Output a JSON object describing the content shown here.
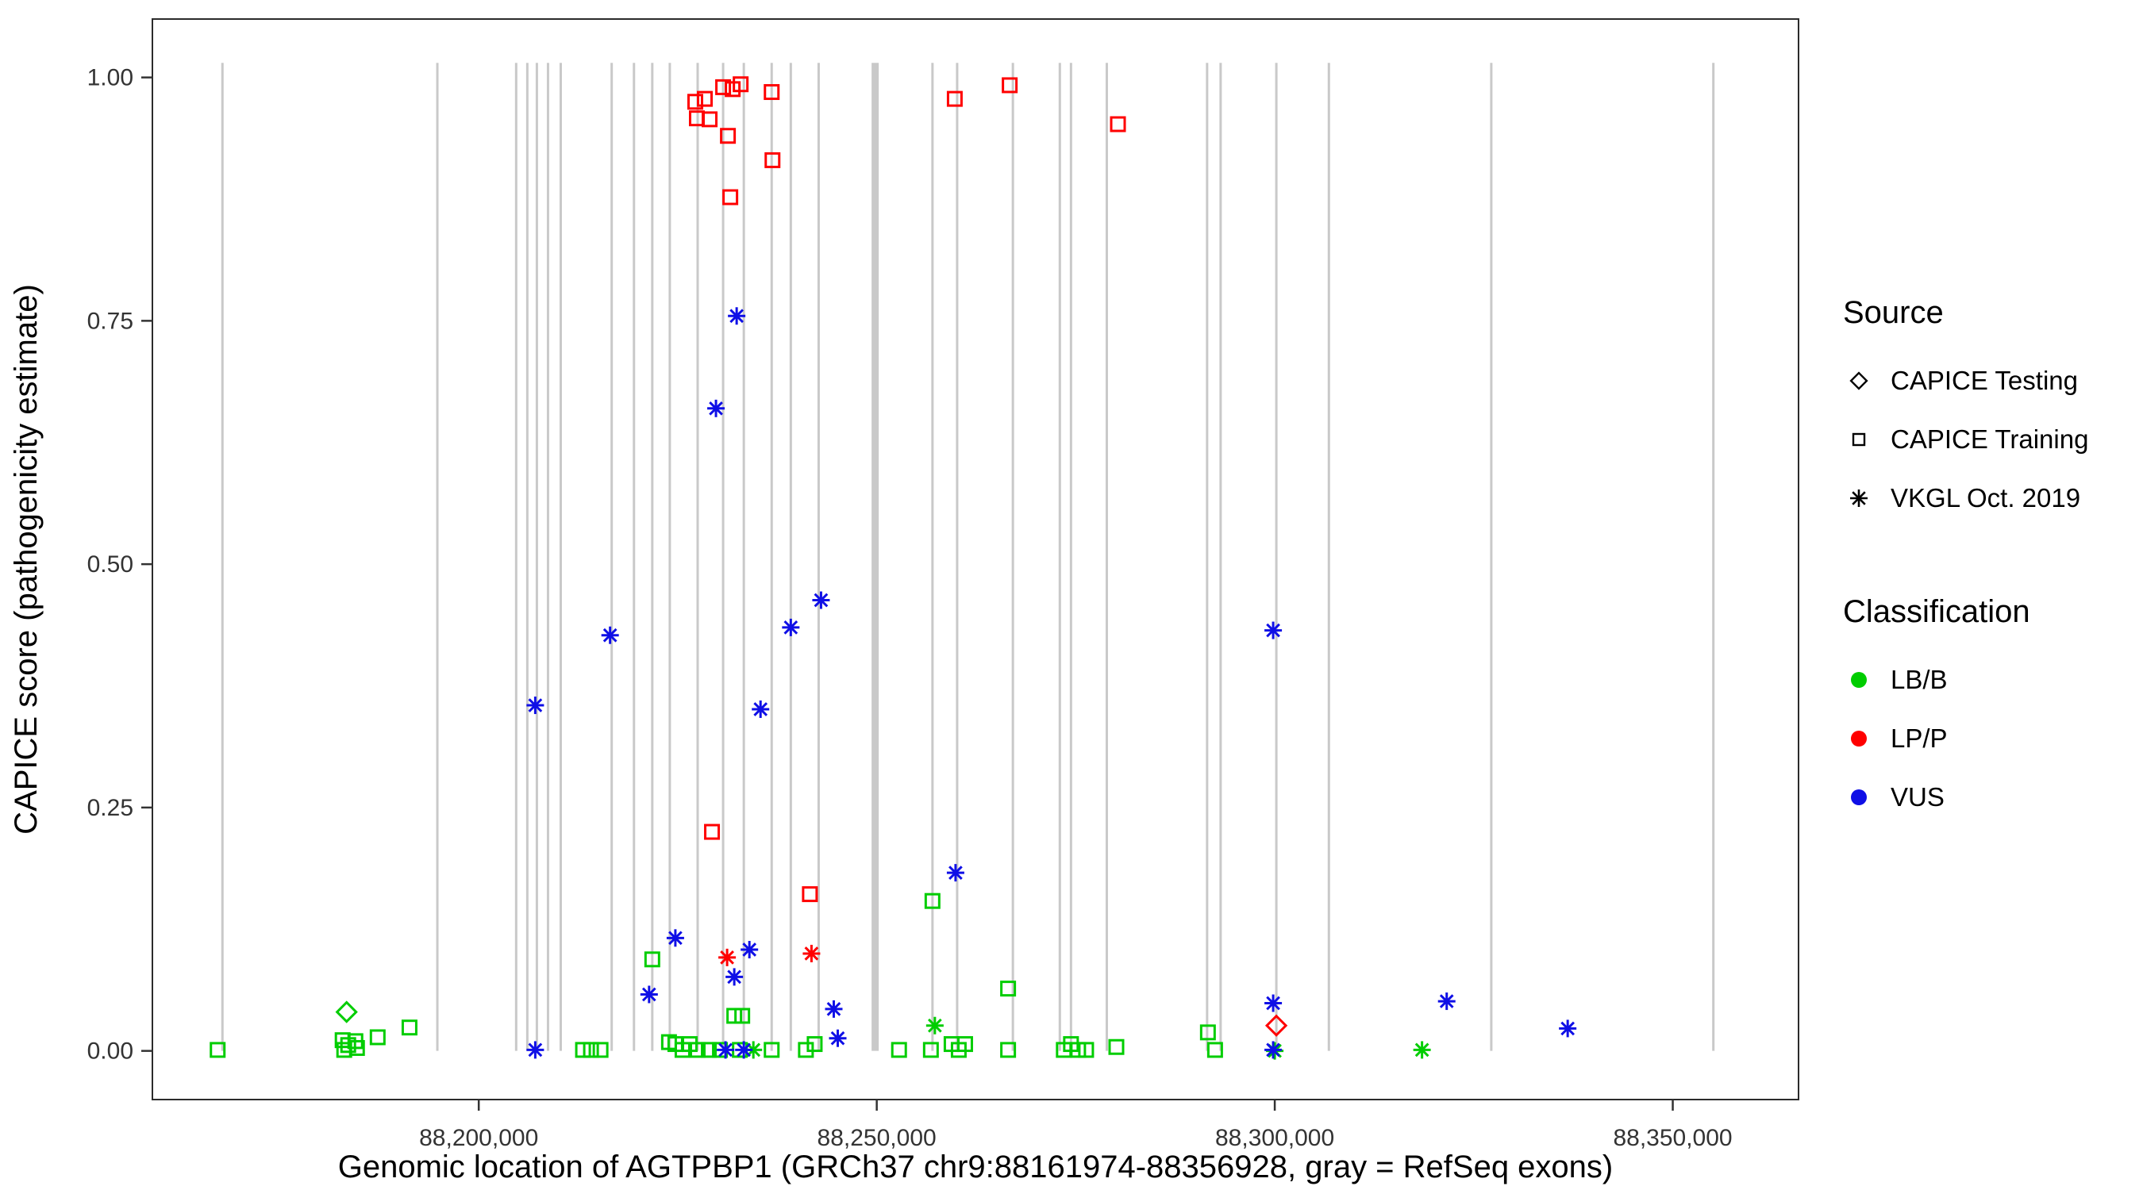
{
  "legend": {
    "source": {
      "title": "Source",
      "items": [
        {
          "label": "CAPICE Testing",
          "marker": "diamond"
        },
        {
          "label": "CAPICE Training",
          "marker": "square"
        },
        {
          "label": "VKGL Oct. 2019",
          "marker": "asterisk"
        }
      ]
    },
    "classification": {
      "title": "Classification",
      "items": [
        {
          "label": "LB/B",
          "color": "#00CD00"
        },
        {
          "label": "LP/P",
          "color": "#FF0000"
        },
        {
          "label": "VUS",
          "color": "#0F0FE6"
        }
      ]
    }
  },
  "chart_data": {
    "type": "scatter",
    "title": "",
    "xlabel": "Genomic location of AGTPBP1 (GRCh37 chr9:88161974-88356928, gray = RefSeq exons)",
    "ylabel": "CAPICE score (pathogenicity estimate)",
    "xlim": [
      88159000,
      88365800
    ],
    "ylim": [
      -0.05,
      1.06
    ],
    "grid": false,
    "legend_position": "right",
    "x_ticks": [
      {
        "value": 88200000,
        "label": "88,200,000"
      },
      {
        "value": 88250000,
        "label": "88,250,000"
      },
      {
        "value": 88300000,
        "label": "88,300,000"
      },
      {
        "value": 88350000,
        "label": "88,350,000"
      }
    ],
    "y_ticks": [
      {
        "value": 0.0,
        "label": "0.00"
      },
      {
        "value": 0.25,
        "label": "0.25"
      },
      {
        "value": 0.5,
        "label": "0.50"
      },
      {
        "value": 0.75,
        "label": "0.75"
      },
      {
        "value": 1.0,
        "label": "1.00"
      }
    ],
    "exon_color": "#C9C9C9",
    "exons": [
      {
        "pos": 88167800,
        "w": 3
      },
      {
        "pos": 88194800,
        "w": 3
      },
      {
        "pos": 88204700,
        "w": 3
      },
      {
        "pos": 88206100,
        "w": 3
      },
      {
        "pos": 88207300,
        "w": 3
      },
      {
        "pos": 88208700,
        "w": 3
      },
      {
        "pos": 88210300,
        "w": 3
      },
      {
        "pos": 88216700,
        "w": 3
      },
      {
        "pos": 88219500,
        "w": 3
      },
      {
        "pos": 88221800,
        "w": 3
      },
      {
        "pos": 88224000,
        "w": 3
      },
      {
        "pos": 88227500,
        "w": 3
      },
      {
        "pos": 88230700,
        "w": 3
      },
      {
        "pos": 88233300,
        "w": 3
      },
      {
        "pos": 88236800,
        "w": 3
      },
      {
        "pos": 88239200,
        "w": 3
      },
      {
        "pos": 88242700,
        "w": 3
      },
      {
        "pos": 88249800,
        "w": 9
      },
      {
        "pos": 88257000,
        "w": 3
      },
      {
        "pos": 88260100,
        "w": 3
      },
      {
        "pos": 88267100,
        "w": 3
      },
      {
        "pos": 88273000,
        "w": 3
      },
      {
        "pos": 88274400,
        "w": 3
      },
      {
        "pos": 88278900,
        "w": 3
      },
      {
        "pos": 88291500,
        "w": 3
      },
      {
        "pos": 88293200,
        "w": 3
      },
      {
        "pos": 88300200,
        "w": 3
      },
      {
        "pos": 88306800,
        "w": 3
      },
      {
        "pos": 88327200,
        "w": 3
      },
      {
        "pos": 88355100,
        "w": 3
      }
    ],
    "series": [
      {
        "name": "LB/B - CAPICE Testing",
        "classification": "LB/B",
        "source": "CAPICE Testing",
        "marker": "diamond",
        "color": "#00CD00",
        "points": [
          [
            88183400,
            0.04
          ]
        ]
      },
      {
        "name": "LB/B - CAPICE Training",
        "classification": "LB/B",
        "source": "CAPICE Training",
        "marker": "square",
        "color": "#00CD00",
        "points": [
          [
            88167200,
            0.001
          ],
          [
            88182900,
            0.011
          ],
          [
            88183600,
            0.006
          ],
          [
            88184500,
            0.01
          ],
          [
            88183100,
            0.001
          ],
          [
            88184700,
            0.003
          ],
          [
            88187300,
            0.014
          ],
          [
            88191300,
            0.024
          ],
          [
            88213100,
            0.001
          ],
          [
            88214100,
            0.001
          ],
          [
            88215300,
            0.001
          ],
          [
            88221800,
            0.094
          ],
          [
            88223900,
            0.009
          ],
          [
            88224700,
            0.007
          ],
          [
            88225600,
            0.001
          ],
          [
            88226500,
            0.007
          ],
          [
            88227500,
            0.001
          ],
          [
            88228900,
            0.001
          ],
          [
            88230300,
            0.001
          ],
          [
            88232100,
            0.036
          ],
          [
            88233100,
            0.036
          ],
          [
            88232800,
            0.001
          ],
          [
            88236800,
            0.001
          ],
          [
            88241100,
            0.001
          ],
          [
            88242200,
            0.007
          ],
          [
            88252800,
            0.001
          ],
          [
            88257000,
            0.154
          ],
          [
            88256800,
            0.001
          ],
          [
            88259400,
            0.007
          ],
          [
            88260300,
            0.001
          ],
          [
            88261100,
            0.007
          ],
          [
            88266500,
            0.064
          ],
          [
            88266500,
            0.001
          ],
          [
            88273500,
            0.001
          ],
          [
            88274400,
            0.007
          ],
          [
            88275300,
            0.001
          ],
          [
            88276300,
            0.001
          ],
          [
            88280100,
            0.004
          ],
          [
            88291600,
            0.019
          ],
          [
            88292500,
            0.001
          ]
        ]
      },
      {
        "name": "LB/B - VKGL Oct. 2019",
        "classification": "LB/B",
        "source": "VKGL Oct. 2019",
        "marker": "asterisk",
        "color": "#00CD00",
        "points": [
          [
            88234500,
            0.001
          ],
          [
            88257300,
            0.026
          ],
          [
            88300000,
            0.0
          ],
          [
            88318500,
            0.001
          ]
        ]
      },
      {
        "name": "LP/P - CAPICE Training",
        "classification": "LP/P",
        "source": "CAPICE Training",
        "marker": "square",
        "color": "#FF0000",
        "points": [
          [
            88227200,
            0.975
          ],
          [
            88228400,
            0.978
          ],
          [
            88227400,
            0.958
          ],
          [
            88229000,
            0.957
          ],
          [
            88230700,
            0.99
          ],
          [
            88231900,
            0.988
          ],
          [
            88232900,
            0.993
          ],
          [
            88231300,
            0.94
          ],
          [
            88231600,
            0.877
          ],
          [
            88236800,
            0.985
          ],
          [
            88236900,
            0.915
          ],
          [
            88259800,
            0.978
          ],
          [
            88266700,
            0.992
          ],
          [
            88280300,
            0.952
          ],
          [
            88229300,
            0.225
          ],
          [
            88241600,
            0.161
          ]
        ]
      },
      {
        "name": "LP/P - VKGL Oct. 2019",
        "classification": "LP/P",
        "source": "VKGL Oct. 2019",
        "marker": "asterisk",
        "color": "#FF0000",
        "points": [
          [
            88231200,
            0.096
          ],
          [
            88241800,
            0.1
          ]
        ]
      },
      {
        "name": "LP/P - CAPICE Testing",
        "classification": "LP/P",
        "source": "CAPICE Testing",
        "marker": "diamond",
        "color": "#FF0000",
        "points": [
          [
            88300200,
            0.026
          ]
        ]
      },
      {
        "name": "VUS - VKGL Oct. 2019",
        "classification": "VUS",
        "source": "VKGL Oct. 2019",
        "marker": "asterisk",
        "color": "#0F0FE6",
        "points": [
          [
            88232400,
            0.755
          ],
          [
            88229800,
            0.66
          ],
          [
            88243000,
            0.463
          ],
          [
            88239200,
            0.435
          ],
          [
            88216500,
            0.427
          ],
          [
            88207100,
            0.355
          ],
          [
            88235400,
            0.351
          ],
          [
            88299800,
            0.432
          ],
          [
            88259900,
            0.183
          ],
          [
            88224700,
            0.116
          ],
          [
            88234000,
            0.104
          ],
          [
            88232100,
            0.076
          ],
          [
            88221400,
            0.058
          ],
          [
            88244600,
            0.043
          ],
          [
            88299800,
            0.049
          ],
          [
            88321600,
            0.051
          ],
          [
            88336800,
            0.023
          ],
          [
            88245100,
            0.013
          ],
          [
            88207100,
            0.001
          ],
          [
            88231000,
            0.001
          ],
          [
            88233300,
            0.001
          ],
          [
            88299800,
            0.001
          ]
        ]
      }
    ]
  }
}
